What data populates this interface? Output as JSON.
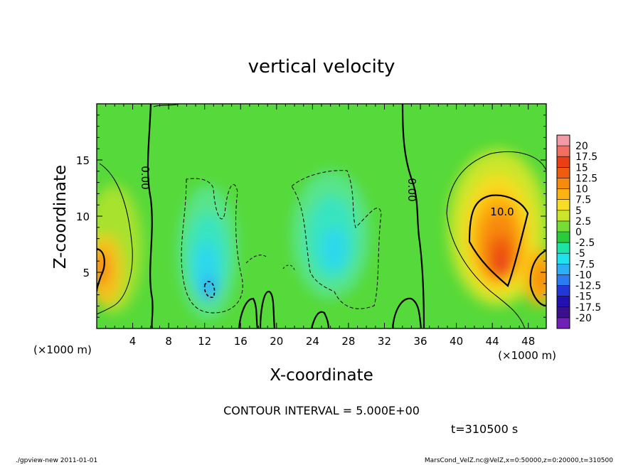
{
  "chart_data": {
    "type": "heatmap",
    "title": "vertical velocity",
    "xlabel": "X-coordinate",
    "ylabel": "Z-coordinate",
    "x_unit_left": "(×1000 m)",
    "x_unit_right": "(×1000 m)",
    "xlim": [
      0,
      50
    ],
    "ylim": [
      0,
      20
    ],
    "x_ticks": [
      4,
      8,
      12,
      16,
      20,
      24,
      28,
      32,
      36,
      40,
      44,
      48
    ],
    "y_ticks": [
      5,
      10,
      15
    ],
    "contour_interval_text": "CONTOUR INTERVAL = 5.000E+00",
    "time_text": "t=310500 s",
    "contour_labels": [
      {
        "text": "0.00",
        "x": 5.8,
        "y": 14.0
      },
      {
        "text": "0.00",
        "x": 35.2,
        "y": 12.5
      },
      {
        "text": "10.0",
        "x": 45.0,
        "y": 10.5
      }
    ],
    "colorbar": {
      "levels": [
        "20",
        "17.5",
        "15",
        "12.5",
        "10",
        "7.5",
        "5",
        "2.5",
        "0",
        "-2.5",
        "-5",
        "-7.5",
        "-10",
        "-12.5",
        "-15",
        "-17.5",
        "-20"
      ],
      "colors": [
        "#f39aa6",
        "#ef6f62",
        "#ea3f14",
        "#ef5c0e",
        "#f88a0c",
        "#fcb311",
        "#f7dd24",
        "#c9e62a",
        "#75dd34",
        "#2acc3c",
        "#1fe2a6",
        "#1ee2ec",
        "#2faef8",
        "#2b7cf0",
        "#2337d8",
        "#2211b0",
        "#3a108e",
        "#7020b8"
      ]
    }
  },
  "footer": {
    "left": "./gpview-new   2011-01-01",
    "right": "MarsCond_VelZ.nc@VelZ,x=0:50000,z=0:20000,t=310500"
  }
}
